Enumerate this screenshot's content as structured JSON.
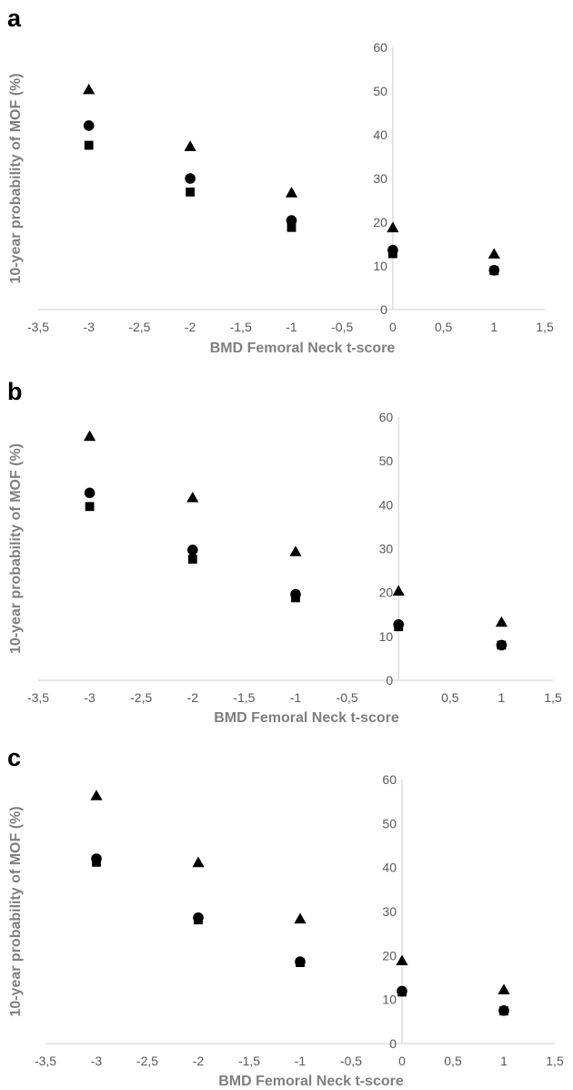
{
  "chart_data": [
    {
      "panel": "a",
      "type": "scatter",
      "xlabel": "BMD Femoral Neck t-score",
      "ylabel": "10-year probability of MOF (%)",
      "xlim": [
        -3.5,
        1.5
      ],
      "ylim": [
        0,
        60
      ],
      "x_ticks": [
        "-3,5",
        "-3",
        "-2,5",
        "-2",
        "-1,5",
        "-1",
        "-0,5",
        "0",
        "0,5",
        "1",
        "1,5"
      ],
      "y_ticks": [
        "0",
        "10",
        "20",
        "30",
        "40",
        "50",
        "60"
      ],
      "grid": false,
      "series": [
        {
          "marker": "triangle",
          "x": [
            -3,
            -2,
            -1,
            0,
            1
          ],
          "y": [
            50.2,
            37.2,
            26.6,
            18.6,
            12.6
          ]
        },
        {
          "marker": "circle",
          "x": [
            -3,
            -2,
            -1,
            0,
            1
          ],
          "y": [
            42.1,
            30.0,
            20.4,
            13.6,
            9.0
          ]
        },
        {
          "marker": "square",
          "x": [
            -3,
            -2,
            -1,
            0,
            1
          ],
          "y": [
            37.6,
            26.9,
            18.8,
            12.8,
            8.9
          ]
        }
      ]
    },
    {
      "panel": "b",
      "type": "scatter",
      "xlabel": "BMD Femoral Neck t-score",
      "ylabel": "10-year probability of MOF (%)",
      "xlim": [
        -3.5,
        1.5
      ],
      "ylim": [
        0,
        60
      ],
      "x_ticks": [
        "-3,5",
        "-3",
        "-2,5",
        "-2",
        "-1,5",
        "-1",
        "-0,5",
        "",
        "0,5",
        "1",
        "1,5"
      ],
      "y_ticks": [
        "0",
        "10",
        "20",
        "30",
        "40",
        "50",
        "60"
      ],
      "grid": false,
      "series": [
        {
          "marker": "triangle",
          "x": [
            -3,
            -2,
            -1,
            0,
            1
          ],
          "y": [
            55.5,
            41.5,
            29.2,
            20.2,
            13.1
          ]
        },
        {
          "marker": "circle",
          "x": [
            -3,
            -2,
            -1,
            0,
            1
          ],
          "y": [
            42.7,
            29.7,
            19.6,
            12.7,
            8.0
          ]
        },
        {
          "marker": "square",
          "x": [
            -3,
            -2,
            -1,
            0,
            1
          ],
          "y": [
            39.6,
            27.6,
            18.8,
            12.2,
            8.0
          ]
        }
      ]
    },
    {
      "panel": "c",
      "type": "scatter",
      "xlabel": "BMD Femoral Neck  t-score",
      "ylabel": "10-year probability of MOF (%)",
      "xlim": [
        -3.5,
        1.5
      ],
      "ylim": [
        0,
        60
      ],
      "x_ticks": [
        "-3,5",
        "-3",
        "-2,5",
        "-2",
        "-1,5",
        "-1",
        "-0,5",
        "0",
        "0,5",
        "1",
        "1,5"
      ],
      "y_ticks": [
        "0",
        "10",
        "20",
        "30",
        "40",
        "50",
        "60"
      ],
      "grid": false,
      "series": [
        {
          "marker": "triangle",
          "x": [
            -3,
            -2,
            -1,
            0,
            1
          ],
          "y": [
            56.2,
            41.0,
            28.2,
            18.7,
            12.1
          ]
        },
        {
          "marker": "circle",
          "x": [
            -3,
            -2,
            -1,
            0,
            1
          ],
          "y": [
            42.0,
            28.6,
            18.6,
            11.9,
            7.5
          ]
        },
        {
          "marker": "square",
          "x": [
            -3,
            -2,
            -1,
            0,
            1
          ],
          "y": [
            41.2,
            28.1,
            18.4,
            11.7,
            7.4
          ]
        }
      ]
    }
  ]
}
